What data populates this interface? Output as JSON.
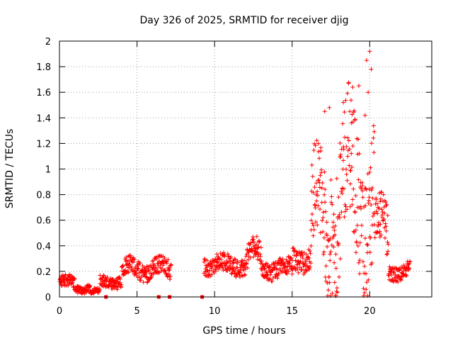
{
  "chart_data": {
    "type": "scatter",
    "title": "Day 326 of 2025, SRMTID for receiver djig",
    "xlabel": "GPS time / hours",
    "ylabel": "SRMTID / TECUs",
    "xlim": [
      0,
      24
    ],
    "ylim": [
      0,
      2
    ],
    "xticks": [
      0,
      5,
      10,
      15,
      20
    ],
    "yticks": [
      0,
      0.2,
      0.4,
      0.6,
      0.8,
      1,
      1.2,
      1.4,
      1.6,
      1.8,
      2
    ],
    "xtick_labels": [
      "0",
      "5",
      "10",
      "15",
      "20"
    ],
    "ytick_labels": [
      "0",
      "0.2",
      "0.4",
      "0.6",
      "0.8",
      "1",
      "1.2",
      "1.4",
      "1.6",
      "1.8",
      "2"
    ],
    "grid": true,
    "marker": "plus",
    "color": "#ff0000",
    "series": [
      {
        "name": "SRMTID",
        "segments": [
          {
            "x0": 0.0,
            "x1": 1.0,
            "base": 0.1,
            "amp": 0.04,
            "noise": 0.05
          },
          {
            "x0": 1.0,
            "x1": 2.0,
            "base": 0.07,
            "amp": 0.02,
            "noise": 0.03
          },
          {
            "x0": 2.0,
            "x1": 2.6,
            "base": 0.04,
            "amp": 0.01,
            "noise": 0.02
          },
          {
            "x0": 2.6,
            "x1": 4.0,
            "base": 0.12,
            "amp": 0.03,
            "noise": 0.05
          },
          {
            "x0": 4.0,
            "x1": 7.2,
            "base": 0.22,
            "amp": 0.04,
            "noise": 0.07
          },
          {
            "x0": 9.3,
            "x1": 12.0,
            "base": 0.25,
            "amp": 0.03,
            "noise": 0.07
          },
          {
            "x0": 12.0,
            "x1": 13.0,
            "base": 0.3,
            "amp": 0.1,
            "noise": 0.08
          },
          {
            "x0": 13.0,
            "x1": 15.0,
            "base": 0.22,
            "amp": 0.03,
            "noise": 0.07
          },
          {
            "x0": 15.0,
            "x1": 16.2,
            "base": 0.3,
            "amp": 0.04,
            "noise": 0.09
          },
          {
            "x0": 16.2,
            "x1": 17.5,
            "base": 0.55,
            "amp": 0.35,
            "noise": 0.35
          },
          {
            "x0": 17.5,
            "x1": 20.3,
            "base": 0.8,
            "amp": 0.4,
            "noise": 0.5
          },
          {
            "x0": 20.3,
            "x1": 21.2,
            "base": 0.45,
            "amp": 0.2,
            "noise": 0.2
          },
          {
            "x0": 21.2,
            "x1": 22.6,
            "base": 0.2,
            "amp": 0.03,
            "noise": 0.06
          }
        ],
        "peaks": [
          {
            "x": 20.0,
            "y": 1.92
          },
          {
            "x": 19.8,
            "y": 1.85
          },
          {
            "x": 20.1,
            "y": 1.78
          },
          {
            "x": 19.3,
            "y": 1.65
          },
          {
            "x": 18.9,
            "y": 1.64
          },
          {
            "x": 17.4,
            "y": 1.48
          },
          {
            "x": 17.1,
            "y": 1.45
          },
          {
            "x": 18.3,
            "y": 1.52
          },
          {
            "x": 19.9,
            "y": 1.6
          },
          {
            "x": 19.7,
            "y": 1.42
          }
        ],
        "zero_points": [
          {
            "x": 3.0,
            "y": 0
          },
          {
            "x": 6.4,
            "y": 0
          },
          {
            "x": 7.1,
            "y": 0
          },
          {
            "x": 9.2,
            "y": 0
          }
        ]
      }
    ]
  }
}
